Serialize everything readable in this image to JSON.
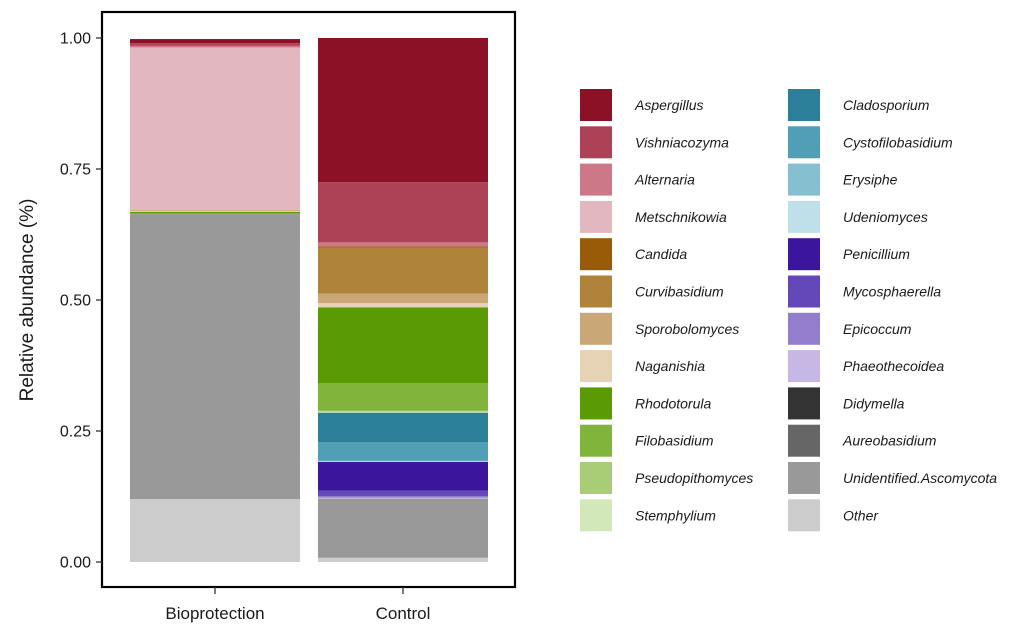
{
  "chart_data": {
    "type": "bar",
    "stacked": true,
    "ylabel": "Relative abundance (%)",
    "xlabel": "",
    "ylim": [
      0,
      1
    ],
    "yticks": [
      "0.00",
      "0.25",
      "0.50",
      "0.75",
      "1.00"
    ],
    "categories": [
      "Bioprotection",
      "Control"
    ],
    "legend_position": "right",
    "grid": false,
    "series": [
      {
        "name": "Aspergillus",
        "color": "#8c1127",
        "values": [
          0.008,
          0.275
        ]
      },
      {
        "name": "Vishniacozyma",
        "color": "#ad4155",
        "values": [
          0.005,
          0.115
        ]
      },
      {
        "name": "Alternaria",
        "color": "#cd7888",
        "values": [
          0.003,
          0.008
        ]
      },
      {
        "name": "Metschnikowia",
        "color": "#e3b7bf",
        "values": [
          0.31,
          0.0
        ]
      },
      {
        "name": "Candida",
        "color": "#995b07",
        "values": [
          0.0,
          0.002
        ]
      },
      {
        "name": "Curvibasidium",
        "color": "#b0833b",
        "values": [
          0.0,
          0.088
        ]
      },
      {
        "name": "Sporobolomyces",
        "color": "#c9a776",
        "values": [
          0.002,
          0.018
        ]
      },
      {
        "name": "Naganishia",
        "color": "#e6d3b5",
        "values": [
          0.002,
          0.008
        ]
      },
      {
        "name": "Rhodotorula",
        "color": "#5a9a04",
        "values": [
          0.002,
          0.145
        ]
      },
      {
        "name": "Filobasidium",
        "color": "#80b43b",
        "values": [
          0.002,
          0.052
        ]
      },
      {
        "name": "Pseudopithomyces",
        "color": "#a9cd77",
        "values": [
          0.0,
          0.002
        ]
      },
      {
        "name": "Stemphylium",
        "color": "#d3e8b8",
        "values": [
          0.0,
          0.002
        ]
      },
      {
        "name": "Cladosporium",
        "color": "#2b7f99",
        "values": [
          0.0,
          0.056
        ]
      },
      {
        "name": "Cystofilobasidium",
        "color": "#509fb7",
        "values": [
          0.0,
          0.036
        ]
      },
      {
        "name": "Erysiphe",
        "color": "#86bfcf",
        "values": [
          0.0,
          0.001
        ]
      },
      {
        "name": "Udeniomyces",
        "color": "#bfe0e8",
        "values": [
          0.0,
          0.001
        ]
      },
      {
        "name": "Penicillium",
        "color": "#3b159b",
        "values": [
          0.0,
          0.055
        ]
      },
      {
        "name": "Mycosphaerella",
        "color": "#6447b8",
        "values": [
          0.0,
          0.01
        ]
      },
      {
        "name": "Epicoccum",
        "color": "#937dcd",
        "values": [
          0.0,
          0.003
        ]
      },
      {
        "name": "Phaeothecoidea",
        "color": "#c6b7e4",
        "values": [
          0.0,
          0.002
        ]
      },
      {
        "name": "Didymella",
        "color": "#333333",
        "values": [
          0.0,
          0.0
        ]
      },
      {
        "name": "Aureobasidium",
        "color": "#666666",
        "values": [
          0.0,
          0.0
        ]
      },
      {
        "name": "Unidentified.Ascomycota",
        "color": "#999999",
        "values": [
          0.544,
          0.113
        ]
      },
      {
        "name": "Other",
        "color": "#cccccc",
        "values": [
          0.12,
          0.008
        ]
      }
    ]
  }
}
